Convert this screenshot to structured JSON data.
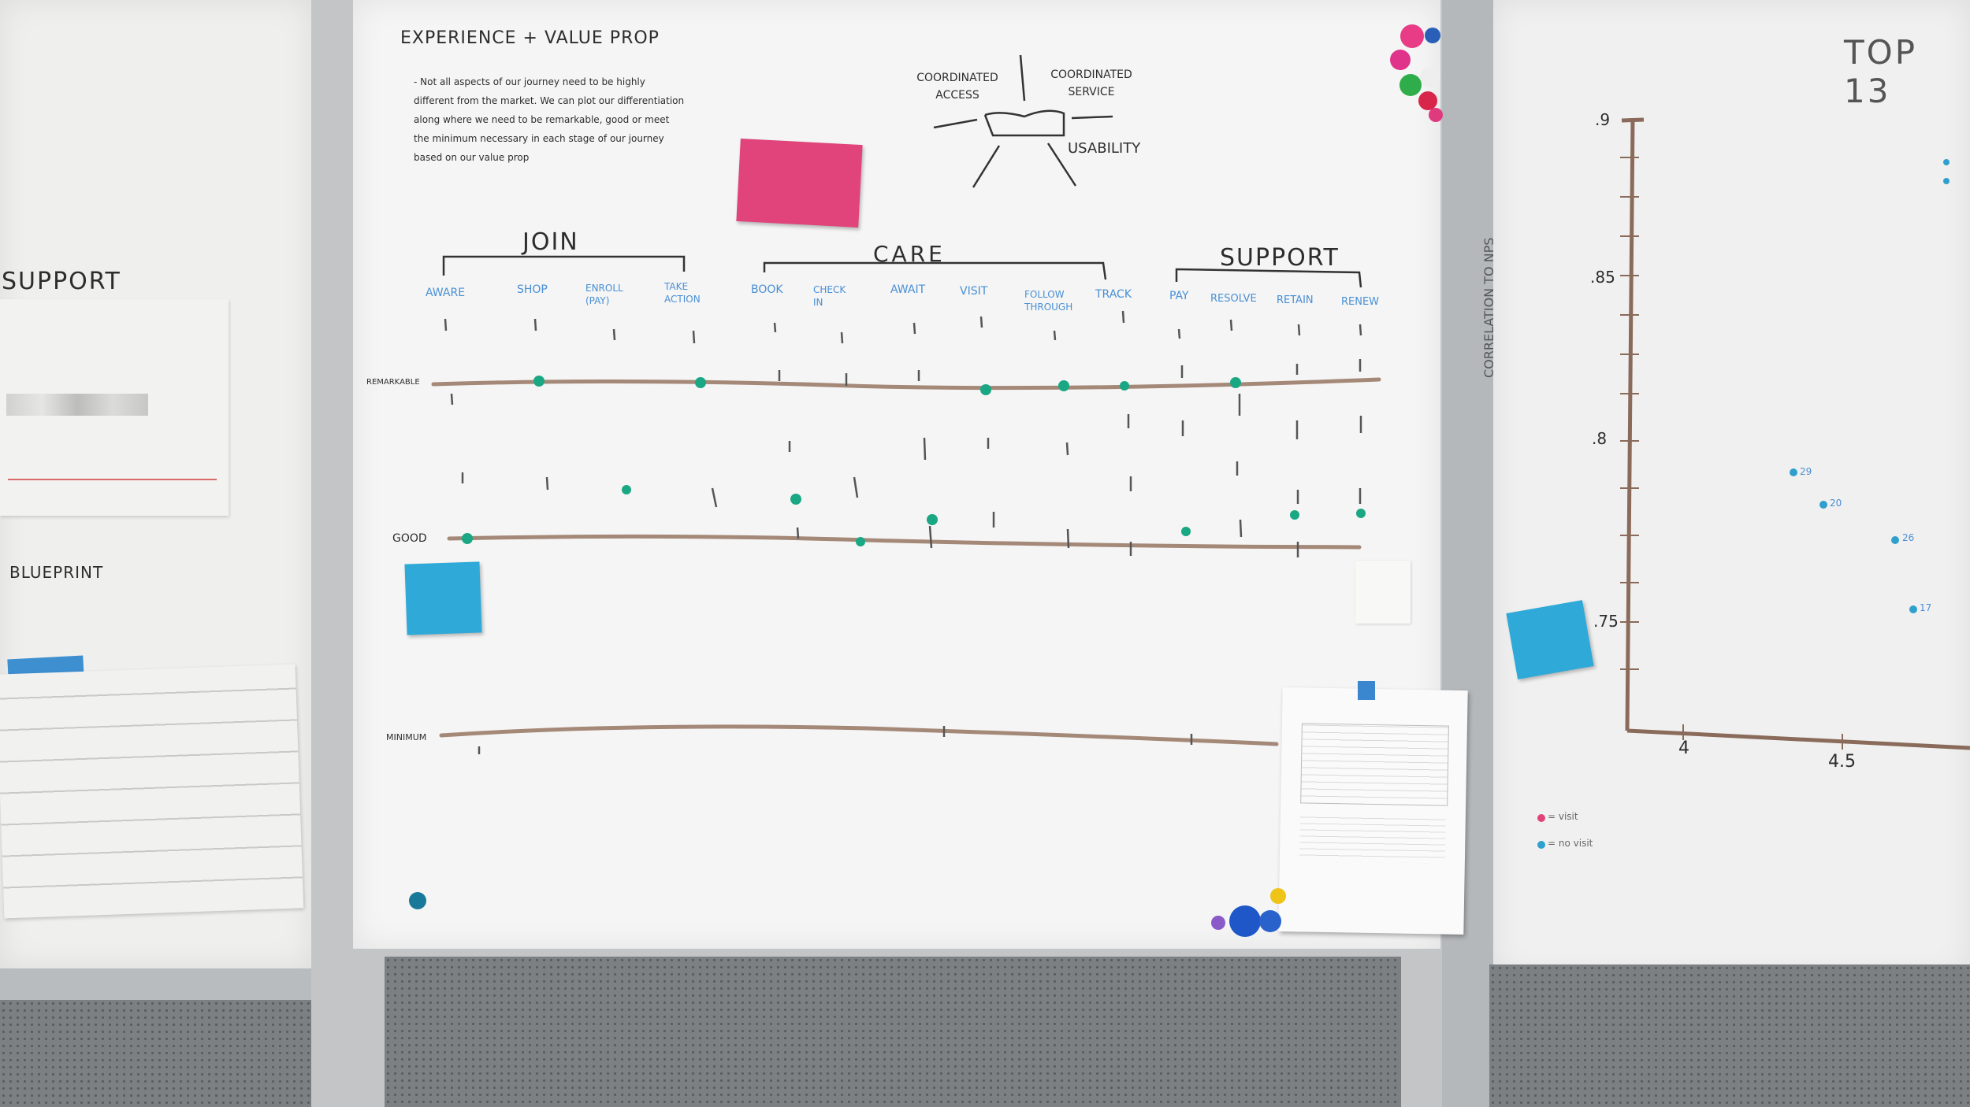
{
  "board": {
    "title": "EXPERIENCE + VALUE PROP",
    "notes": [
      "- Not all aspects of our journey need to be highly",
      "different from the market. We can plot our differentiation",
      "along where we need to be remarkable, good or meet",
      "the minimum necessary in each stage of our journey",
      "based on our value prop"
    ],
    "diagram": {
      "left": "COORDINATED ACCESS",
      "right": "COORDINATED SERVICE",
      "bottom": "USABILITY"
    },
    "phases": [
      {
        "name": "JOIN"
      },
      {
        "name": "CARE"
      },
      {
        "name": "SUPPORT"
      }
    ],
    "steps": [
      "AWARE",
      "SHOP",
      "ENROLL (PAY)",
      "TAKE ACTION",
      "BOOK",
      "CHECK IN",
      "AWAIT",
      "VISIT",
      "FOLLOW THROUGH",
      "TRACK",
      "PAY",
      "RESOLVE",
      "RETAIN",
      "RENEW"
    ],
    "levels": {
      "remarkable": "REMARKABLE",
      "good": "GOOD",
      "minimum": "MINIMUM"
    }
  },
  "left_board": {
    "support": "SUPPORT",
    "blueprint": "BLUEPRINT"
  },
  "right_board": {
    "title": "TOP 13",
    "ylabel": "CORRELATION TO NPS",
    "yticks": [
      ".9",
      ".85",
      ".8",
      ".75"
    ],
    "xticks": [
      "4",
      "4.5"
    ],
    "points": [
      "29",
      "20",
      "26",
      "17"
    ],
    "legend": [
      "= visit",
      "= no visit"
    ]
  },
  "colors": {
    "marker_line": "#a48878",
    "dot_green": "#1aa783",
    "dot_blue": "#2f9fce",
    "sticky_pink": "#e0447a",
    "sticky_blue": "#2ea9d8"
  }
}
